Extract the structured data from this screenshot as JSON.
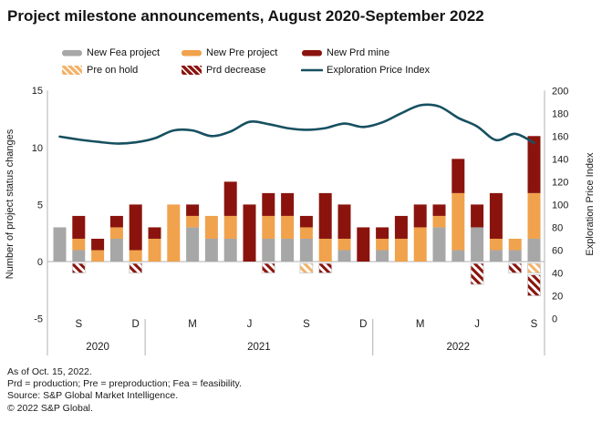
{
  "title": "Project milestone announcements, August 2020-September 2022",
  "legend": {
    "items": [
      {
        "label": "New Fea project",
        "swatch": "solid",
        "color": "#a7a7a7"
      },
      {
        "label": "New Pre project",
        "swatch": "solid",
        "color": "#f0a24c"
      },
      {
        "label": "New Prd mine",
        "swatch": "solid",
        "color": "#8a140d"
      },
      {
        "label": "Pre on hold",
        "swatch": "hatch",
        "color": "#f2b26a"
      },
      {
        "label": "Prd decrease",
        "swatch": "hatch",
        "color": "#8a140d"
      },
      {
        "label": "Exploration Price Index",
        "swatch": "line",
        "color": "#175061"
      }
    ]
  },
  "chart_data": {
    "type": "bar",
    "stacked": true,
    "title": "Project milestone announcements, August 2020-September 2022",
    "ylabel_left": "Number of project status changes",
    "ylabel_right": "Exploration Price Index",
    "ylim_left": [
      -5,
      15
    ],
    "ylim_right": [
      0,
      200
    ],
    "yticks_left": [
      15,
      10,
      5,
      0,
      -5
    ],
    "yticks_right": [
      200,
      180,
      160,
      140,
      120,
      100,
      80,
      60,
      40,
      20,
      0
    ],
    "grid": false,
    "legend_position": "top",
    "categories": [
      "Aug 2020",
      "Sep 2020",
      "Oct 2020",
      "Nov 2020",
      "Dec 2020",
      "Jan 2021",
      "Feb 2021",
      "Mar 2021",
      "Apr 2021",
      "May 2021",
      "Jun 2021",
      "Jul 2021",
      "Aug 2021",
      "Sep 2021",
      "Oct 2021",
      "Nov 2021",
      "Dec 2021",
      "Jan 2022",
      "Feb 2022",
      "Mar 2022",
      "Apr 2022",
      "May 2022",
      "Jun 2022",
      "Jul 2022",
      "Aug 2022",
      "Sep 2022"
    ],
    "month_ticks": [
      {
        "index": 1,
        "label": "S"
      },
      {
        "index": 4,
        "label": "D"
      },
      {
        "index": 7,
        "label": "M"
      },
      {
        "index": 10,
        "label": "J"
      },
      {
        "index": 13,
        "label": "S"
      },
      {
        "index": 16,
        "label": "D"
      },
      {
        "index": 19,
        "label": "M"
      },
      {
        "index": 22,
        "label": "J"
      },
      {
        "index": 25,
        "label": "S"
      }
    ],
    "year_groups": [
      {
        "label": "2020",
        "start": 0,
        "end": 4
      },
      {
        "label": "2021",
        "start": 5,
        "end": 16
      },
      {
        "label": "2022",
        "start": 17,
        "end": 25
      }
    ],
    "series": [
      {
        "name": "New Fea project",
        "style": "solid",
        "color": "#a7a7a7",
        "values": [
          3,
          1,
          0,
          2,
          0,
          0,
          0,
          3,
          2,
          2,
          0,
          2,
          2,
          2,
          0,
          1,
          0,
          1,
          0,
          0,
          3,
          1,
          3,
          1,
          1,
          2
        ]
      },
      {
        "name": "New Pre project",
        "style": "solid",
        "color": "#f0a24c",
        "values": [
          0,
          1,
          1,
          1,
          1,
          2,
          5,
          1,
          2,
          2,
          0,
          2,
          2,
          1,
          2,
          1,
          0,
          1,
          2,
          3,
          1,
          5,
          0,
          1,
          1,
          4
        ]
      },
      {
        "name": "New Prd mine",
        "style": "solid",
        "color": "#8a140d",
        "values": [
          0,
          2,
          1,
          1,
          4,
          1,
          0,
          1,
          0,
          3,
          5,
          2,
          2,
          1,
          4,
          3,
          3,
          1,
          2,
          2,
          1,
          3,
          2,
          4,
          0,
          5
        ]
      },
      {
        "name": "Pre on hold",
        "style": "hatch",
        "color": "#f2b26a",
        "values": [
          0,
          0,
          0,
          0,
          0,
          0,
          0,
          0,
          0,
          0,
          0,
          0,
          0,
          -1,
          0,
          0,
          0,
          0,
          0,
          0,
          0,
          0,
          0,
          0,
          0,
          -1
        ]
      },
      {
        "name": "Prd decrease",
        "style": "hatch",
        "color": "#8a140d",
        "values": [
          0,
          -1,
          0,
          0,
          -1,
          0,
          0,
          0,
          0,
          0,
          0,
          -1,
          0,
          0,
          -1,
          0,
          0,
          0,
          0,
          0,
          0,
          0,
          -2,
          0,
          -1,
          -2
        ]
      }
    ],
    "line": {
      "name": "Exploration Price Index",
      "color": "#175061",
      "axis": "right",
      "values": [
        159.5,
        157,
        155,
        153.5,
        154.5,
        158,
        165,
        165,
        160,
        164,
        172.5,
        170.5,
        167,
        165.5,
        167,
        171,
        168,
        172,
        180,
        187,
        186,
        176,
        168.5,
        156.5,
        162,
        154
      ]
    }
  },
  "footer": {
    "lines": [
      "As of Oct. 15, 2022.",
      "Prd = production; Pre = preproduction; Fea = feasibility.",
      "Source: S&P Global Market Intelligence.",
      "© 2022 S&P Global."
    ]
  }
}
